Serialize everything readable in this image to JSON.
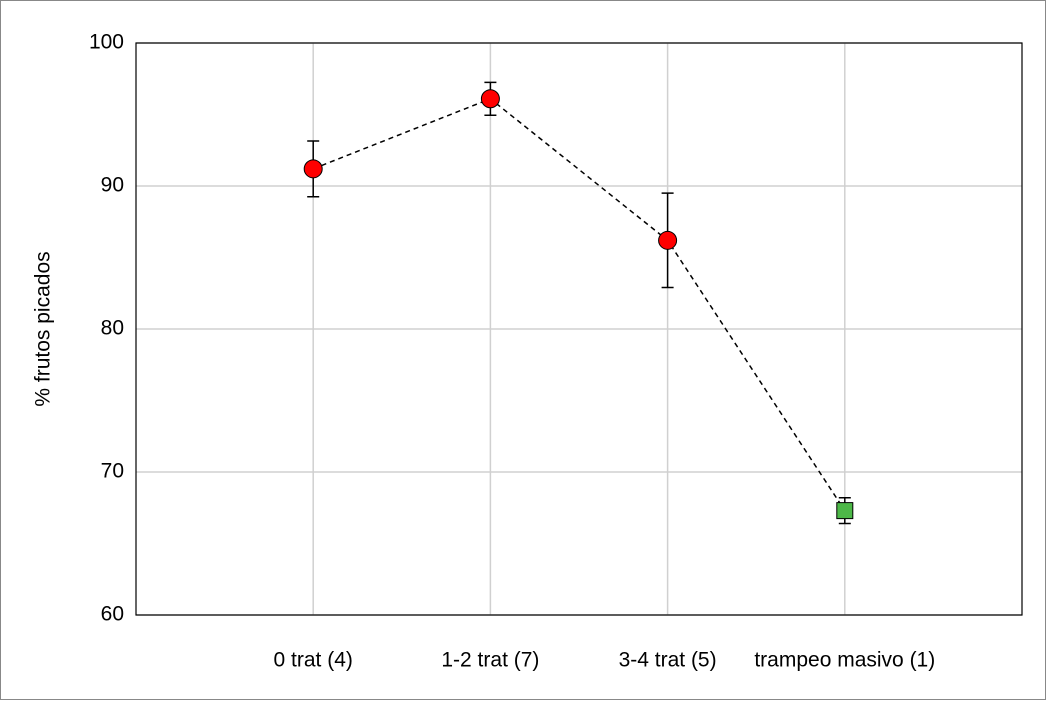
{
  "chart_data": {
    "type": "line",
    "y_label": "% frutos picados",
    "categories": [
      "0 trat (4)",
      "1-2 trat (7)",
      "3-4 trat (5)",
      "trampeo masivo (1)"
    ],
    "series": [
      {
        "values": [
          91.2,
          96.1,
          86.2,
          67.3
        ],
        "errors": [
          1.95,
          1.15,
          3.3,
          0.9
        ],
        "color": "#000000",
        "line_style": "dashed",
        "marker_colors": [
          "#ff0000",
          "#ff0000",
          "#ff0000",
          "#4db848"
        ],
        "markers": [
          "circle",
          "circle",
          "circle",
          "square"
        ]
      }
    ],
    "ylim": [
      60,
      100
    ],
    "yticks": [
      60,
      70,
      80,
      90,
      100
    ],
    "grid": true
  }
}
